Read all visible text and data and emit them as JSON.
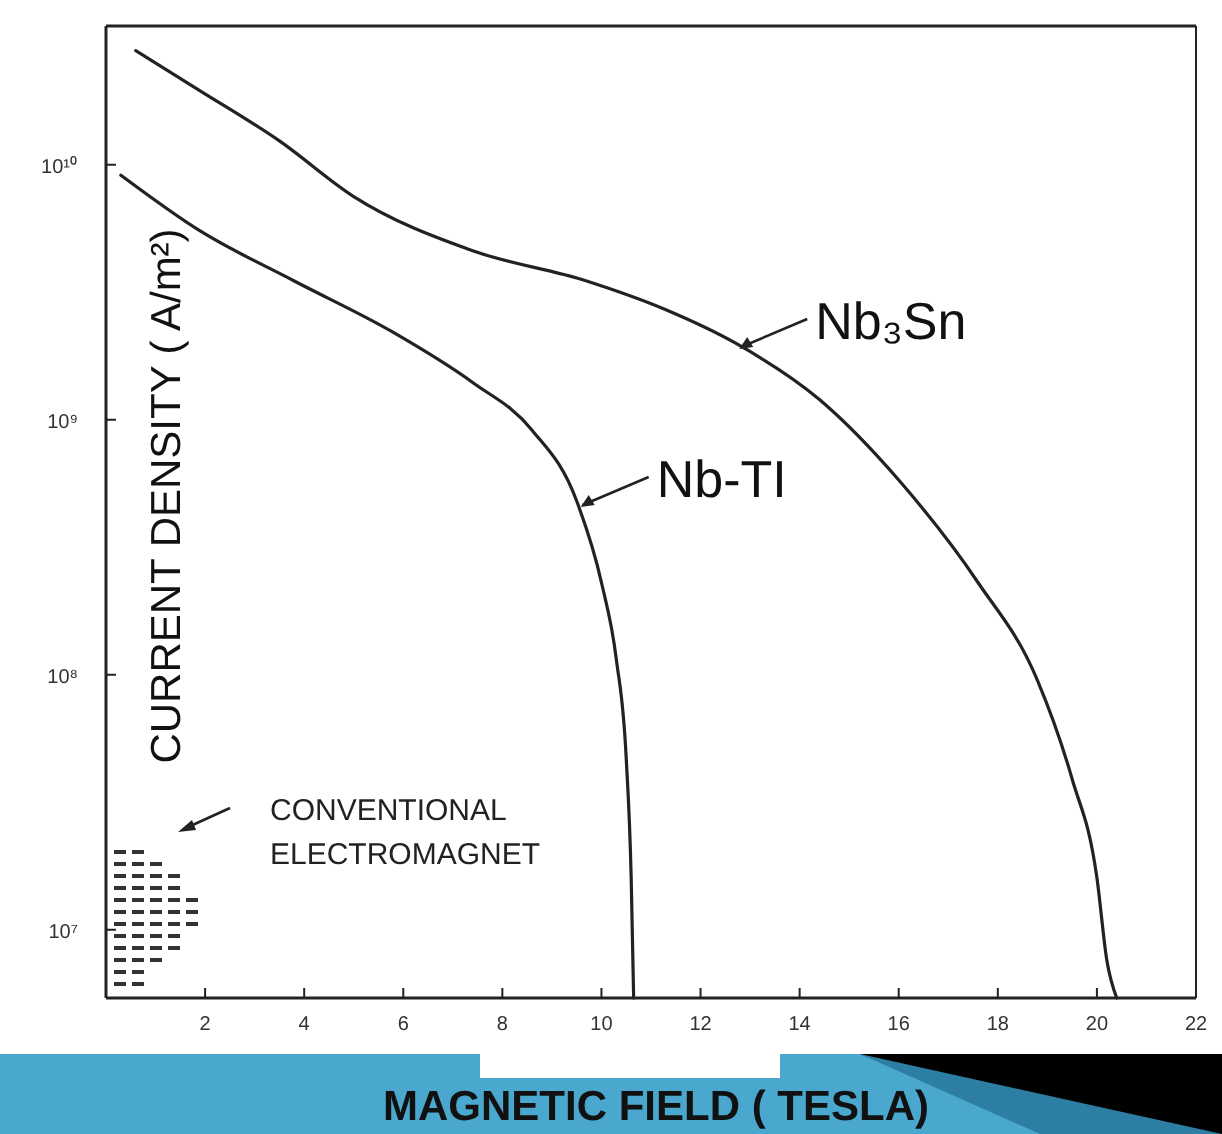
{
  "chart_data": {
    "type": "line",
    "xlabel": "MAGNETIC FIELD ( TESLA)",
    "ylabel": "CURRENT DENSITY ( A/m²)",
    "log": "y",
    "line_style": "solid",
    "marker": "none",
    "xlim": [
      0,
      22
    ],
    "xticks": [
      2,
      4,
      6,
      8,
      10,
      12,
      14,
      16,
      18,
      20,
      22
    ],
    "ylim": [
      5400000,
      35000000000
    ],
    "yticks": [
      {
        "value": 10000000,
        "label": "10⁷"
      },
      {
        "value": 100000000,
        "label": "10⁸"
      },
      {
        "value": 1000000000,
        "label": "10⁹"
      },
      {
        "value": 10000000000,
        "label": "10¹⁰"
      }
    ],
    "series": [
      {
        "name": "Nb₃Sn",
        "color": "#222222",
        "x": [
          0.6,
          1.9,
          3.5,
          5.0,
          7.4,
          9.7,
          11.3,
          12.7,
          14.4,
          16.0,
          17.6,
          18.8,
          19.5,
          20.0,
          20.2,
          20.4
        ],
        "values": [
          28000000000,
          19500000000,
          12400000000,
          7500000000,
          4600000000,
          3500000000,
          2700000000,
          2000000000,
          1200000000,
          580000000,
          230000000,
          95000000,
          39000000,
          16000000,
          7600000,
          5400000
        ]
      },
      {
        "name": "Nb-TI",
        "color": "#222222",
        "x": [
          0.3,
          1.9,
          3.8,
          5.8,
          7.4,
          8.6,
          9.5,
          10.0,
          10.3,
          10.5,
          10.6,
          10.65
        ],
        "values": [
          9100000000,
          5500000000,
          3500000000,
          2200000000,
          1400000000,
          910000000,
          480000000,
          230000000,
          115000000,
          47000000,
          16000000,
          5400000
        ]
      }
    ],
    "legend": "top right",
    "annotations": [
      "CONVENTIONAL\nELECTROMAGNET"
    ]
  }
}
